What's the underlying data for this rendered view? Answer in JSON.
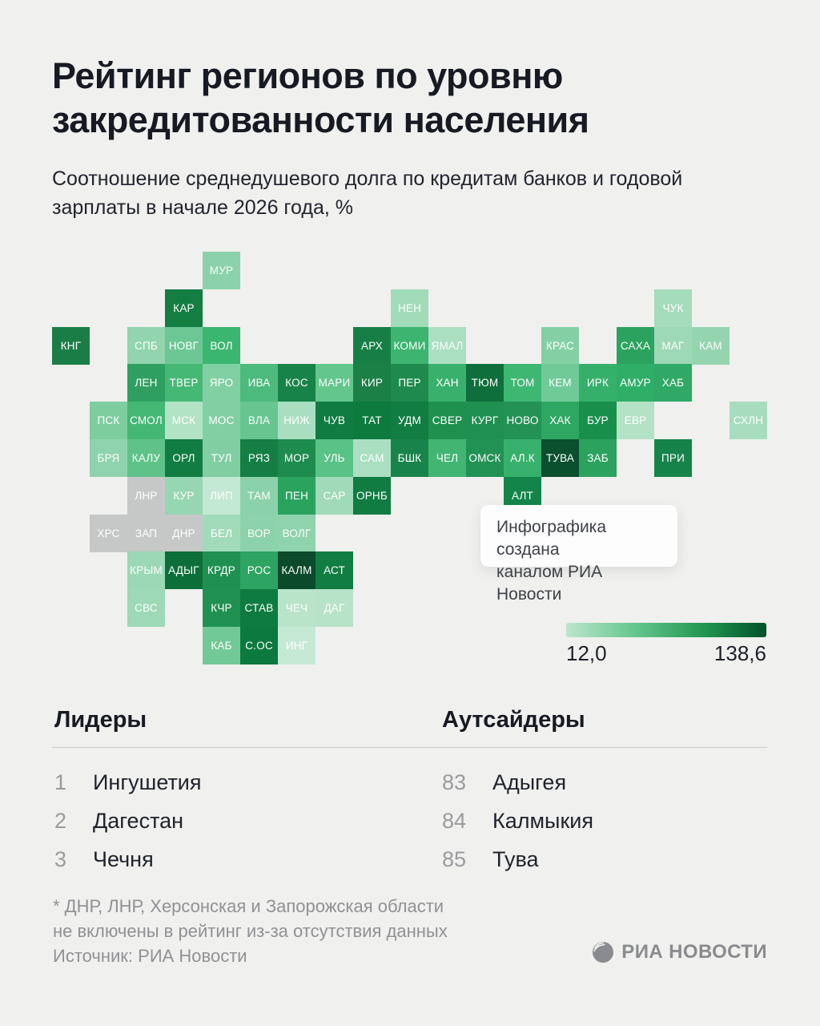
{
  "title": {
    "line1": "Рейтинг регионов по уровню",
    "line2": "закредитованности населения"
  },
  "subtitle": {
    "line1": "Соотношение среднедушевого долга по кредитам банков и годовой",
    "line2": "зарплаты в начале 2026 года, %"
  },
  "tooltip": {
    "line1": "Инфографика создана",
    "line2": "каналом РИА Новости"
  },
  "legend": {
    "min_label": "12,0",
    "max_label": "138,6"
  },
  "leaders": {
    "title": "Лидеры",
    "items": [
      {
        "rank": "1",
        "name": "Ингушетия"
      },
      {
        "rank": "2",
        "name": "Дагестан"
      },
      {
        "rank": "3",
        "name": "Чечня"
      }
    ]
  },
  "outsiders": {
    "title": "Аутсайдеры",
    "items": [
      {
        "rank": "83",
        "name": "Адыгея"
      },
      {
        "rank": "84",
        "name": "Калмыкия"
      },
      {
        "rank": "85",
        "name": "Тува"
      }
    ]
  },
  "footnote": {
    "line1": "* ДНР, ЛНР, Херсонская и Запорожская области",
    "line2": "не включены в рейтинг из-за отсутствия данных"
  },
  "source": "Источник: РИА Новости",
  "logo_text": "РИА НОВОСТИ",
  "chart_data": {
    "type": "heatmap",
    "subtype": "tile-cartogram-russia",
    "title": "Рейтинг регионов по уровню закредитованности населения",
    "metric": "Соотношение среднедушевого долга по кредитам банков и годовой зарплаты в начале 2026 года, %",
    "legend": {
      "min": 12.0,
      "max": 138.6,
      "min_color": "#bce6cc",
      "max_color": "#02512a",
      "excluded_color": "#c6c7c7"
    },
    "leaders": [
      [
        "1",
        "Ингушетия"
      ],
      [
        "2",
        "Дагестан"
      ],
      [
        "3",
        "Чечня"
      ]
    ],
    "outsiders": [
      [
        "83",
        "Адыгея"
      ],
      [
        "84",
        "Калмыкия"
      ],
      [
        "85",
        "Тува"
      ]
    ],
    "excluded_regions": [
      "ДНР",
      "ЛНР",
      "ХРС",
      "ЗАП"
    ],
    "tiles": [
      {
        "label": "МУР",
        "col": 4,
        "row": 0,
        "color": "#8bd2aa"
      },
      {
        "label": "КАР",
        "col": 3,
        "row": 1,
        "color": "#147d42"
      },
      {
        "label": "НЕН",
        "col": 9,
        "row": 1,
        "color": "#a1dbba"
      },
      {
        "label": "ЧУК",
        "col": 16,
        "row": 1,
        "color": "#a4dcbc"
      },
      {
        "label": "КНГ",
        "col": 0,
        "row": 2,
        "color": "#1a7d46"
      },
      {
        "label": "СПБ",
        "col": 2,
        "row": 2,
        "color": "#92d4ad"
      },
      {
        "label": "НОВГ",
        "col": 3,
        "row": 2,
        "color": "#6cc795"
      },
      {
        "label": "ВОЛ",
        "col": 4,
        "row": 2,
        "color": "#3bb671"
      },
      {
        "label": "АРХ",
        "col": 8,
        "row": 2,
        "color": "#177f46"
      },
      {
        "label": "КОМИ",
        "col": 9,
        "row": 2,
        "color": "#3db46f"
      },
      {
        "label": "ЯМАЛ",
        "col": 10,
        "row": 2,
        "color": "#abdfc2"
      },
      {
        "label": "КРАС",
        "col": 13,
        "row": 2,
        "color": "#84d0a4"
      },
      {
        "label": "САХА",
        "col": 15,
        "row": 2,
        "color": "#2ba35e"
      },
      {
        "label": "МАГ",
        "col": 16,
        "row": 2,
        "color": "#9ed9b7"
      },
      {
        "label": "КАМ",
        "col": 17,
        "row": 2,
        "color": "#94d5af"
      },
      {
        "label": "ЛЕН",
        "col": 2,
        "row": 3,
        "color": "#2e9f60"
      },
      {
        "label": "ТВЕР",
        "col": 3,
        "row": 3,
        "color": "#46b876"
      },
      {
        "label": "ЯРО",
        "col": 4,
        "row": 3,
        "color": "#80d0a3"
      },
      {
        "label": "ИВА",
        "col": 5,
        "row": 3,
        "color": "#4cbb7d"
      },
      {
        "label": "КОС",
        "col": 6,
        "row": 3,
        "color": "#188348"
      },
      {
        "label": "МАРИ",
        "col": 7,
        "row": 3,
        "color": "#62c68d"
      },
      {
        "label": "КИР",
        "col": 8,
        "row": 3,
        "color": "#1b8046"
      },
      {
        "label": "ПЕР",
        "col": 9,
        "row": 3,
        "color": "#1f8a4e"
      },
      {
        "label": "ХАН",
        "col": 10,
        "row": 3,
        "color": "#39b16d"
      },
      {
        "label": "ТЮМ",
        "col": 11,
        "row": 3,
        "color": "#0e6f3c"
      },
      {
        "label": "ТОМ",
        "col": 12,
        "row": 3,
        "color": "#3eb773"
      },
      {
        "label": "КЕМ",
        "col": 13,
        "row": 3,
        "color": "#6fca97"
      },
      {
        "label": "ИРК",
        "col": 14,
        "row": 3,
        "color": "#35b06b"
      },
      {
        "label": "АМУР",
        "col": 15,
        "row": 3,
        "color": "#2fae68"
      },
      {
        "label": "ХАБ",
        "col": 16,
        "row": 3,
        "color": "#2fa965"
      },
      {
        "label": "ПСК",
        "col": 1,
        "row": 4,
        "color": "#7ecd9f"
      },
      {
        "label": "СМОЛ",
        "col": 2,
        "row": 4,
        "color": "#44b774"
      },
      {
        "label": "МСК",
        "col": 3,
        "row": 4,
        "color": "#b2e3c5"
      },
      {
        "label": "МОС",
        "col": 4,
        "row": 4,
        "color": "#82cfa4"
      },
      {
        "label": "ВЛА",
        "col": 5,
        "row": 4,
        "color": "#67c590"
      },
      {
        "label": "НИЖ",
        "col": 6,
        "row": 4,
        "color": "#a9dec0"
      },
      {
        "label": "ЧУВ",
        "col": 7,
        "row": 4,
        "color": "#107c41"
      },
      {
        "label": "ТАТ",
        "col": 8,
        "row": 4,
        "color": "#0d7a3e"
      },
      {
        "label": "УДМ",
        "col": 9,
        "row": 4,
        "color": "#117d43"
      },
      {
        "label": "СВЕР",
        "col": 10,
        "row": 4,
        "color": "#20904f"
      },
      {
        "label": "КУРГ",
        "col": 11,
        "row": 4,
        "color": "#1f9051"
      },
      {
        "label": "НОВО",
        "col": 12,
        "row": 4,
        "color": "#249254"
      },
      {
        "label": "ХАК",
        "col": 13,
        "row": 4,
        "color": "#2ea763"
      },
      {
        "label": "БУР",
        "col": 14,
        "row": 4,
        "color": "#18904c"
      },
      {
        "label": "ЕВР",
        "col": 15,
        "row": 4,
        "color": "#b4e2c6"
      },
      {
        "label": "СХЛН",
        "col": 18,
        "row": 4,
        "color": "#a7ddbe"
      },
      {
        "label": "БРЯ",
        "col": 1,
        "row": 5,
        "color": "#8ed3ad"
      },
      {
        "label": "КАЛУ",
        "col": 2,
        "row": 5,
        "color": "#5fc389"
      },
      {
        "label": "ОРЛ",
        "col": 3,
        "row": 5,
        "color": "#117d42"
      },
      {
        "label": "ТУЛ",
        "col": 4,
        "row": 5,
        "color": "#80cea2"
      },
      {
        "label": "РЯЗ",
        "col": 5,
        "row": 5,
        "color": "#147e44"
      },
      {
        "label": "МОР",
        "col": 6,
        "row": 5,
        "color": "#1e8c4f"
      },
      {
        "label": "УЛЬ",
        "col": 7,
        "row": 5,
        "color": "#59c286"
      },
      {
        "label": "САМ",
        "col": 8,
        "row": 5,
        "color": "#abdfc2"
      },
      {
        "label": "БШК",
        "col": 9,
        "row": 5,
        "color": "#18834a"
      },
      {
        "label": "ЧЕЛ",
        "col": 10,
        "row": 5,
        "color": "#43b573"
      },
      {
        "label": "ОМСК",
        "col": 11,
        "row": 5,
        "color": "#229254"
      },
      {
        "label": "АЛ.К",
        "col": 12,
        "row": 5,
        "color": "#38b06d"
      },
      {
        "label": "ТУВА",
        "col": 13,
        "row": 5,
        "color": "#0a4f2e"
      },
      {
        "label": "ЗАБ",
        "col": 14,
        "row": 5,
        "color": "#2ba35f"
      },
      {
        "label": "ПРИ",
        "col": 16,
        "row": 5,
        "color": "#16834a"
      },
      {
        "label": "ЛНР",
        "col": 2,
        "row": 6,
        "color": "#c6c7c7"
      },
      {
        "label": "КУР",
        "col": 3,
        "row": 6,
        "color": "#97d6b2"
      },
      {
        "label": "ЛИП",
        "col": 4,
        "row": 6,
        "color": "#c3e8d3"
      },
      {
        "label": "ТАМ",
        "col": 5,
        "row": 6,
        "color": "#8bd2ab"
      },
      {
        "label": "ПЕН",
        "col": 6,
        "row": 6,
        "color": "#2aa35f"
      },
      {
        "label": "САР",
        "col": 7,
        "row": 6,
        "color": "#a0dab8"
      },
      {
        "label": "ОРНБ",
        "col": 8,
        "row": 6,
        "color": "#107c41"
      },
      {
        "label": "АЛТ",
        "col": 12,
        "row": 6,
        "color": "#14854a"
      },
      {
        "label": "ХРС",
        "col": 1,
        "row": 7,
        "color": "#c6c7c7"
      },
      {
        "label": "ЗАП",
        "col": 2,
        "row": 7,
        "color": "#c6c7c7"
      },
      {
        "label": "ДНР",
        "col": 3,
        "row": 7,
        "color": "#c6c7c7"
      },
      {
        "label": "БЕЛ",
        "col": 4,
        "row": 7,
        "color": "#a2dbba"
      },
      {
        "label": "ВОР",
        "col": 5,
        "row": 7,
        "color": "#8cd2ab"
      },
      {
        "label": "ВОЛГ",
        "col": 6,
        "row": 7,
        "color": "#8ed3ad"
      },
      {
        "label": "КРЫМ",
        "col": 2,
        "row": 8,
        "color": "#9bd8b5"
      },
      {
        "label": "АДЫГ",
        "col": 3,
        "row": 8,
        "color": "#0c6f3a"
      },
      {
        "label": "КРДР",
        "col": 4,
        "row": 8,
        "color": "#1f9051"
      },
      {
        "label": "РОС",
        "col": 5,
        "row": 8,
        "color": "#2da462"
      },
      {
        "label": "КАЛМ",
        "col": 6,
        "row": 8,
        "color": "#0b4a2b"
      },
      {
        "label": "АСТ",
        "col": 7,
        "row": 8,
        "color": "#117d42"
      },
      {
        "label": "СВС",
        "col": 2,
        "row": 9,
        "color": "#9dd9b6"
      },
      {
        "label": "КЧР",
        "col": 4,
        "row": 9,
        "color": "#209152"
      },
      {
        "label": "СТАВ",
        "col": 5,
        "row": 9,
        "color": "#0e7b40"
      },
      {
        "label": "ЧЕЧ",
        "col": 6,
        "row": 9,
        "color": "#b9e4ca"
      },
      {
        "label": "ДАГ",
        "col": 7,
        "row": 9,
        "color": "#b7e3c8"
      },
      {
        "label": "КАБ",
        "col": 4,
        "row": 10,
        "color": "#71c997"
      },
      {
        "label": "С.ОС",
        "col": 5,
        "row": 10,
        "color": "#0c7a3e"
      },
      {
        "label": "ИНГ",
        "col": 6,
        "row": 10,
        "color": "#c6e9d5"
      }
    ]
  }
}
